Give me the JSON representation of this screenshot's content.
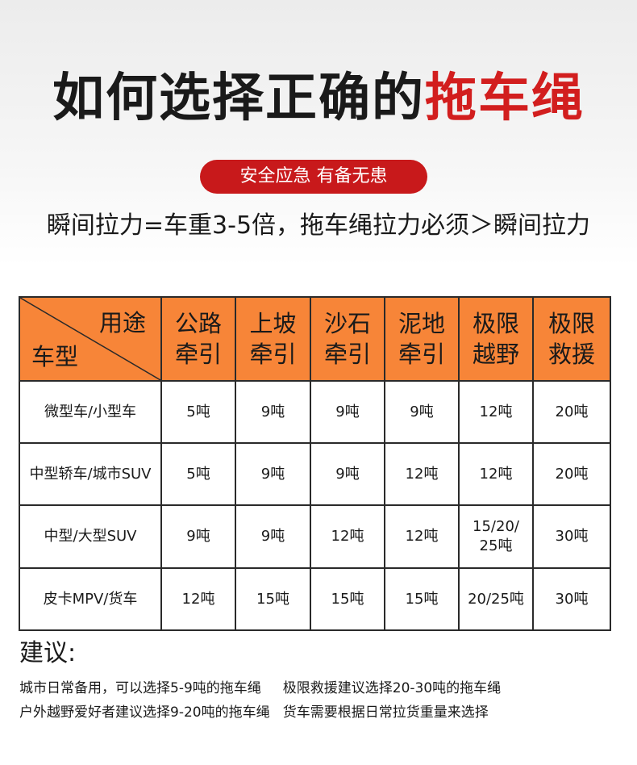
{
  "title": {
    "main": "如何选择正确的",
    "highlight": "拖车绳"
  },
  "badge": "安全应急 有备无患",
  "formula": "瞬间拉力=车重3-5倍，拖车绳拉力必须＞瞬间拉力",
  "table": {
    "corner": {
      "usage": "用途",
      "vehicle": "车型"
    },
    "columns": [
      [
        "公路",
        "牵引"
      ],
      [
        "上坡",
        "牵引"
      ],
      [
        "沙石",
        "牵引"
      ],
      [
        "泥地",
        "牵引"
      ],
      [
        "极限",
        "越野"
      ],
      [
        "极限",
        "救援"
      ]
    ],
    "rows": [
      {
        "vehicle": "微型车/小型车",
        "values": [
          "5吨",
          "9吨",
          "9吨",
          "9吨",
          "12吨",
          "20吨"
        ]
      },
      {
        "vehicle": "中型轿车/城市SUV",
        "values": [
          "5吨",
          "9吨",
          "9吨",
          "12吨",
          "12吨",
          "20吨"
        ]
      },
      {
        "vehicle": "中型/大型SUV",
        "values": [
          "9吨",
          "9吨",
          "12吨",
          "12吨",
          "15/20/\n25吨",
          "30吨"
        ]
      },
      {
        "vehicle": "皮卡MPV/货车",
        "values": [
          "12吨",
          "15吨",
          "15吨",
          "15吨",
          "20/25吨",
          "30吨"
        ]
      }
    ]
  },
  "advice": {
    "title": "建议:",
    "lines": [
      "城市日常备用，可以选择5-9吨的拖车绳     极限救援建议选择20-30吨的拖车绳",
      "户外越野爱好者建议选择9-20吨的拖车绳   货车需要根据日常拉货重量来选择"
    ]
  },
  "colors": {
    "accent": "#d21e1e",
    "header_bg": "#f78538",
    "badge_bg": "#c8191b"
  }
}
